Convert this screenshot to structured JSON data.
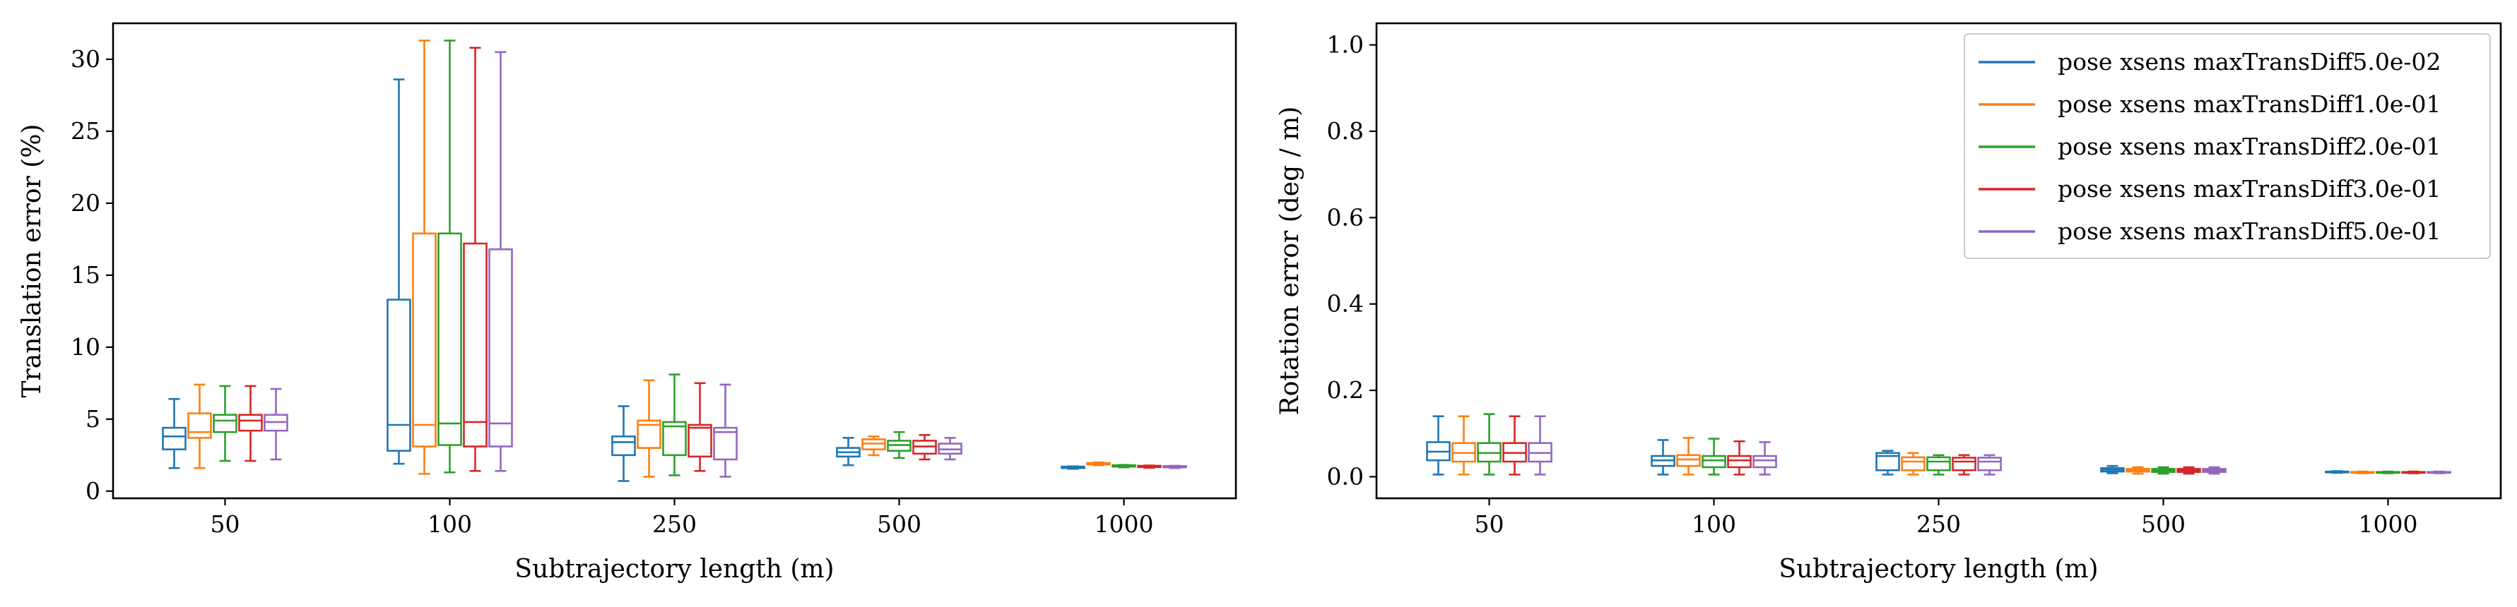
{
  "chart_data": [
    {
      "type": "box",
      "title": "",
      "xlabel": "Subtrajectory length (m)",
      "ylabel": "Translation error (%)",
      "categories": [
        "50",
        "100",
        "250",
        "500",
        "1000"
      ],
      "ylim": [
        -0.5,
        32.5
      ],
      "yticks": [
        0,
        5,
        10,
        15,
        20,
        25,
        30
      ],
      "ytick_labels": [
        "0",
        "5",
        "10",
        "15",
        "20",
        "25",
        "30"
      ],
      "grid": false,
      "series": [
        {
          "name": "pose xsens maxTransDiff5.0e-02",
          "color": "#1f77b4",
          "boxes": [
            {
              "min": 1.6,
              "q1": 2.9,
              "median": 3.8,
              "q3": 4.4,
              "max": 6.4
            },
            {
              "min": 1.9,
              "q1": 2.8,
              "median": 4.6,
              "q3": 13.3,
              "max": 28.6
            },
            {
              "min": 0.7,
              "q1": 2.5,
              "median": 3.4,
              "q3": 3.8,
              "max": 5.9
            },
            {
              "min": 1.8,
              "q1": 2.4,
              "median": 2.7,
              "q3": 3.0,
              "max": 3.7
            },
            {
              "min": 1.55,
              "q1": 1.6,
              "median": 1.65,
              "q3": 1.7,
              "max": 1.72
            }
          ]
        },
        {
          "name": "pose xsens maxTransDiff1.0e-01",
          "color": "#ff7f0e",
          "boxes": [
            {
              "min": 1.6,
              "q1": 3.7,
              "median": 4.1,
              "q3": 5.4,
              "max": 7.4
            },
            {
              "min": 1.2,
              "q1": 3.1,
              "median": 4.6,
              "q3": 17.9,
              "max": 31.3
            },
            {
              "min": 1.0,
              "q1": 3.0,
              "median": 4.6,
              "q3": 4.9,
              "max": 7.7
            },
            {
              "min": 2.5,
              "q1": 2.9,
              "median": 3.3,
              "q3": 3.6,
              "max": 3.8
            },
            {
              "min": 1.8,
              "q1": 1.85,
              "median": 1.9,
              "q3": 1.95,
              "max": 2.0
            }
          ]
        },
        {
          "name": "pose xsens maxTransDiff2.0e-01",
          "color": "#2ca02c",
          "boxes": [
            {
              "min": 2.1,
              "q1": 4.1,
              "median": 4.9,
              "q3": 5.3,
              "max": 7.3
            },
            {
              "min": 1.3,
              "q1": 3.2,
              "median": 4.7,
              "q3": 17.9,
              "max": 31.3
            },
            {
              "min": 1.1,
              "q1": 2.5,
              "median": 4.5,
              "q3": 4.8,
              "max": 8.1
            },
            {
              "min": 2.3,
              "q1": 2.8,
              "median": 3.2,
              "q3": 3.5,
              "max": 4.1
            },
            {
              "min": 1.65,
              "q1": 1.7,
              "median": 1.75,
              "q3": 1.8,
              "max": 1.82
            }
          ]
        },
        {
          "name": "pose xsens maxTransDiff3.0e-01",
          "color": "#d62728",
          "boxes": [
            {
              "min": 2.1,
              "q1": 4.2,
              "median": 4.9,
              "q3": 5.3,
              "max": 7.3
            },
            {
              "min": 1.4,
              "q1": 3.1,
              "median": 4.8,
              "q3": 17.2,
              "max": 30.8
            },
            {
              "min": 1.4,
              "q1": 2.4,
              "median": 4.4,
              "q3": 4.6,
              "max": 7.5
            },
            {
              "min": 2.2,
              "q1": 2.6,
              "median": 3.1,
              "q3": 3.5,
              "max": 3.9
            },
            {
              "min": 1.62,
              "q1": 1.67,
              "median": 1.72,
              "q3": 1.76,
              "max": 1.78
            }
          ]
        },
        {
          "name": "pose xsens maxTransDiff5.0e-01",
          "color": "#9467bd",
          "boxes": [
            {
              "min": 2.2,
              "q1": 4.2,
              "median": 4.8,
              "q3": 5.3,
              "max": 7.1
            },
            {
              "min": 1.4,
              "q1": 3.1,
              "median": 4.7,
              "q3": 16.8,
              "max": 30.5
            },
            {
              "min": 1.0,
              "q1": 2.2,
              "median": 4.1,
              "q3": 4.4,
              "max": 7.4
            },
            {
              "min": 2.2,
              "q1": 2.6,
              "median": 2.9,
              "q3": 3.3,
              "max": 3.7
            },
            {
              "min": 1.6,
              "q1": 1.65,
              "median": 1.7,
              "q3": 1.74,
              "max": 1.76
            }
          ]
        }
      ]
    },
    {
      "type": "box",
      "title": "",
      "xlabel": "Subtrajectory length (m)",
      "ylabel": "Rotation error (deg / m)",
      "categories": [
        "50",
        "100",
        "250",
        "500",
        "1000"
      ],
      "ylim": [
        -0.05,
        1.05
      ],
      "yticks": [
        0,
        0.2,
        0.4,
        0.6,
        0.8,
        1.0
      ],
      "ytick_labels": [
        "0.0",
        "0.2",
        "0.4",
        "0.6",
        "0.8",
        "1.0"
      ],
      "grid": false,
      "legend_position": "top-right",
      "series": [
        {
          "name": "pose xsens maxTransDiff5.0e-02",
          "color": "#1f77b4",
          "boxes": [
            {
              "min": 0.005,
              "q1": 0.038,
              "median": 0.058,
              "q3": 0.08,
              "max": 0.14
            },
            {
              "min": 0.005,
              "q1": 0.025,
              "median": 0.038,
              "q3": 0.048,
              "max": 0.085
            },
            {
              "min": 0.005,
              "q1": 0.015,
              "median": 0.048,
              "q3": 0.055,
              "max": 0.06
            },
            {
              "min": 0.008,
              "q1": 0.012,
              "median": 0.016,
              "q3": 0.02,
              "max": 0.025
            },
            {
              "min": 0.009,
              "q1": 0.01,
              "median": 0.011,
              "q3": 0.012,
              "max": 0.013
            }
          ]
        },
        {
          "name": "pose xsens maxTransDiff1.0e-01",
          "color": "#ff7f0e",
          "boxes": [
            {
              "min": 0.005,
              "q1": 0.035,
              "median": 0.055,
              "q3": 0.078,
              "max": 0.14
            },
            {
              "min": 0.005,
              "q1": 0.025,
              "median": 0.04,
              "q3": 0.05,
              "max": 0.09
            },
            {
              "min": 0.005,
              "q1": 0.015,
              "median": 0.035,
              "q3": 0.045,
              "max": 0.055
            },
            {
              "min": 0.007,
              "q1": 0.012,
              "median": 0.015,
              "q3": 0.018,
              "max": 0.022
            },
            {
              "min": 0.008,
              "q1": 0.009,
              "median": 0.01,
              "q3": 0.011,
              "max": 0.012
            }
          ]
        },
        {
          "name": "pose xsens maxTransDiff2.0e-01",
          "color": "#2ca02c",
          "boxes": [
            {
              "min": 0.005,
              "q1": 0.035,
              "median": 0.055,
              "q3": 0.078,
              "max": 0.145
            },
            {
              "min": 0.005,
              "q1": 0.022,
              "median": 0.038,
              "q3": 0.048,
              "max": 0.088
            },
            {
              "min": 0.005,
              "q1": 0.015,
              "median": 0.035,
              "q3": 0.045,
              "max": 0.05
            },
            {
              "min": 0.007,
              "q1": 0.011,
              "median": 0.014,
              "q3": 0.018,
              "max": 0.022
            },
            {
              "min": 0.008,
              "q1": 0.009,
              "median": 0.01,
              "q3": 0.011,
              "max": 0.012
            }
          ]
        },
        {
          "name": "pose xsens maxTransDiff3.0e-01",
          "color": "#d62728",
          "boxes": [
            {
              "min": 0.005,
              "q1": 0.035,
              "median": 0.055,
              "q3": 0.078,
              "max": 0.14
            },
            {
              "min": 0.005,
              "q1": 0.022,
              "median": 0.038,
              "q3": 0.048,
              "max": 0.082
            },
            {
              "min": 0.005,
              "q1": 0.015,
              "median": 0.035,
              "q3": 0.044,
              "max": 0.05
            },
            {
              "min": 0.007,
              "q1": 0.011,
              "median": 0.014,
              "q3": 0.018,
              "max": 0.022
            },
            {
              "min": 0.008,
              "q1": 0.009,
              "median": 0.01,
              "q3": 0.011,
              "max": 0.012
            }
          ]
        },
        {
          "name": "pose xsens maxTransDiff5.0e-01",
          "color": "#9467bd",
          "boxes": [
            {
              "min": 0.005,
              "q1": 0.035,
              "median": 0.055,
              "q3": 0.078,
              "max": 0.14
            },
            {
              "min": 0.005,
              "q1": 0.022,
              "median": 0.038,
              "q3": 0.048,
              "max": 0.08
            },
            {
              "min": 0.005,
              "q1": 0.015,
              "median": 0.035,
              "q3": 0.044,
              "max": 0.05
            },
            {
              "min": 0.007,
              "q1": 0.011,
              "median": 0.014,
              "q3": 0.018,
              "max": 0.022
            },
            {
              "min": 0.008,
              "q1": 0.009,
              "median": 0.01,
              "q3": 0.011,
              "max": 0.012
            }
          ]
        }
      ]
    }
  ]
}
